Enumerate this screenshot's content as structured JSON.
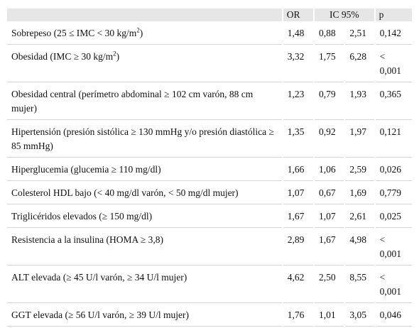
{
  "header": {
    "or": "OR",
    "ic": "IC 95%",
    "p": "p"
  },
  "rows": [
    {
      "label": "Sobrepeso (25 ≤ IMC < 30 kg/m",
      "label_sup": "2",
      "label_tail": ")",
      "or": "1,48",
      "ic_low": "0,88",
      "ic_high": "2,51",
      "p": "0,142"
    },
    {
      "label": "Obesidad (IMC ≥ 30 kg/m",
      "label_sup": "2",
      "label_tail": ")",
      "or": "3,32",
      "ic_low": "1,75",
      "ic_high": "6,28",
      "p": "< 0,001"
    },
    {
      "label": "Obesidad central (perímetro abdominal ≥ 102 cm varón, 88 cm mujer)",
      "or": "1,23",
      "ic_low": "0,79",
      "ic_high": "1,93",
      "p": "0,365"
    },
    {
      "label": "Hipertensión (presión sistólica ≥ 130 mmHg y/o presión diastólica ≥ 85 mmHg)",
      "or": "1,35",
      "ic_low": "0,92",
      "ic_high": "1,97",
      "p": "0,121"
    },
    {
      "label": "Hiperglucemia (glucemia ≥ 110 mg/dl)",
      "or": "1,66",
      "ic_low": "1,06",
      "ic_high": "2,59",
      "p": "0,026"
    },
    {
      "label": "Colesterol HDL bajo (< 40 mg/dl varón, < 50 mg/dl mujer)",
      "or": "1,07",
      "ic_low": "0,67",
      "ic_high": "1,69",
      "p": "0,779"
    },
    {
      "label": "Triglicéridos elevados (≥ 150 mg/dl)",
      "or": "1,67",
      "ic_low": "1,07",
      "ic_high": "2,61",
      "p": "0,025"
    },
    {
      "label": "Resistencia a la insulina (HOMA ≥ 3,8)",
      "or": "2,89",
      "ic_low": "1,67",
      "ic_high": "4,98",
      "p": "< 0,001"
    },
    {
      "label": "ALT elevada (≥ 45 U/l varón, ≥ 34 U/l mujer)",
      "or": "4,62",
      "ic_low": "2,50",
      "ic_high": "8,55",
      "p": "< 0,001"
    },
    {
      "label": "GGT elevada (≥ 56 U/l varón, ≥ 39 U/l mujer)",
      "or": "1,76",
      "ic_low": "1,01",
      "ic_high": "3,05",
      "p": "0,046"
    }
  ]
}
